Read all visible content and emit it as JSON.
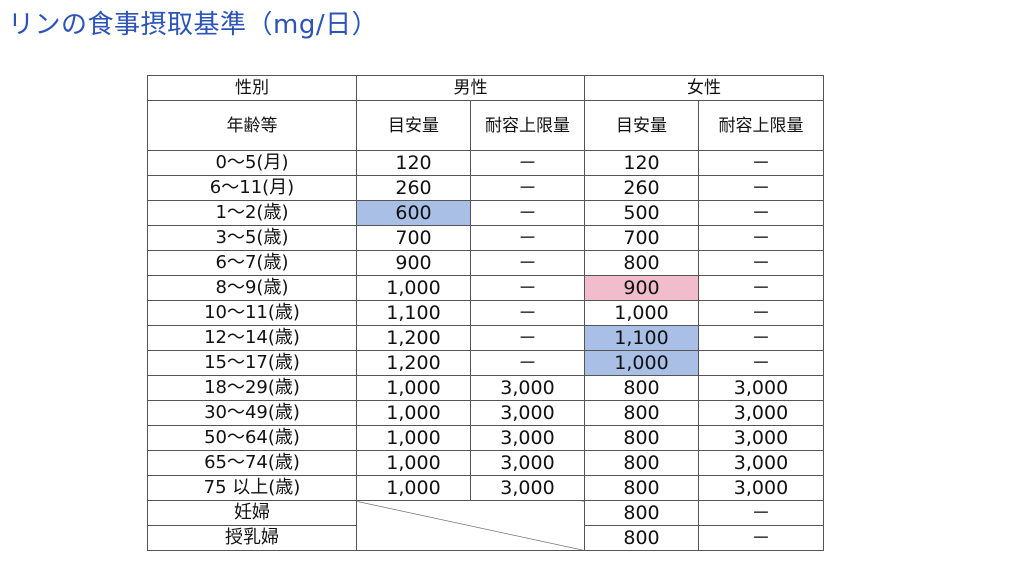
{
  "title": "リンの食事摂取基準（mg/日）",
  "headers": {
    "sex": "性別",
    "age": "年齢等",
    "male": "男性",
    "female": "女性",
    "adequate": "目安量",
    "upper_limit": "耐容上限量"
  },
  "rows": [
    {
      "age": "0～5(月)",
      "m_ai": "120",
      "m_ul": "－",
      "f_ai": "120",
      "f_ul": "－"
    },
    {
      "age": "6～11(月)",
      "m_ai": "260",
      "m_ul": "－",
      "f_ai": "260",
      "f_ul": "－"
    },
    {
      "age": "1～2(歳)",
      "m_ai": "600",
      "m_ul": "－",
      "f_ai": "500",
      "f_ul": "－"
    },
    {
      "age": "3～5(歳)",
      "m_ai": "700",
      "m_ul": "－",
      "f_ai": "700",
      "f_ul": "－"
    },
    {
      "age": "6～7(歳)",
      "m_ai": "900",
      "m_ul": "－",
      "f_ai": "800",
      "f_ul": "－"
    },
    {
      "age": "8～9(歳)",
      "m_ai": "1,000",
      "m_ul": "－",
      "f_ai": "900",
      "f_ul": "－"
    },
    {
      "age": "10～11(歳)",
      "m_ai": "1,100",
      "m_ul": "－",
      "f_ai": "1,000",
      "f_ul": "－"
    },
    {
      "age": "12～14(歳)",
      "m_ai": "1,200",
      "m_ul": "－",
      "f_ai": "1,100",
      "f_ul": "－"
    },
    {
      "age": "15～17(歳)",
      "m_ai": "1,200",
      "m_ul": "－",
      "f_ai": "1,000",
      "f_ul": "－"
    },
    {
      "age": "18～29(歳)",
      "m_ai": "1,000",
      "m_ul": "3,000",
      "f_ai": "800",
      "f_ul": "3,000"
    },
    {
      "age": "30～49(歳)",
      "m_ai": "1,000",
      "m_ul": "3,000",
      "f_ai": "800",
      "f_ul": "3,000"
    },
    {
      "age": "50～64(歳)",
      "m_ai": "1,000",
      "m_ul": "3,000",
      "f_ai": "800",
      "f_ul": "3,000"
    },
    {
      "age": "65～74(歳)",
      "m_ai": "1,000",
      "m_ul": "3,000",
      "f_ai": "800",
      "f_ul": "3,000"
    },
    {
      "age": "75 以上(歳)",
      "m_ai": "1,000",
      "m_ul": "3,000",
      "f_ai": "800",
      "f_ul": "3,000"
    }
  ],
  "special_rows": [
    {
      "age": "妊婦",
      "f_ai": "800",
      "f_ul": "－"
    },
    {
      "age": "授乳婦",
      "f_ai": "800",
      "f_ul": "－"
    }
  ],
  "colors": {
    "title": "#2b53b8",
    "highlight_blue": "#a9bfe6",
    "highlight_pink": "#f1bccb"
  }
}
